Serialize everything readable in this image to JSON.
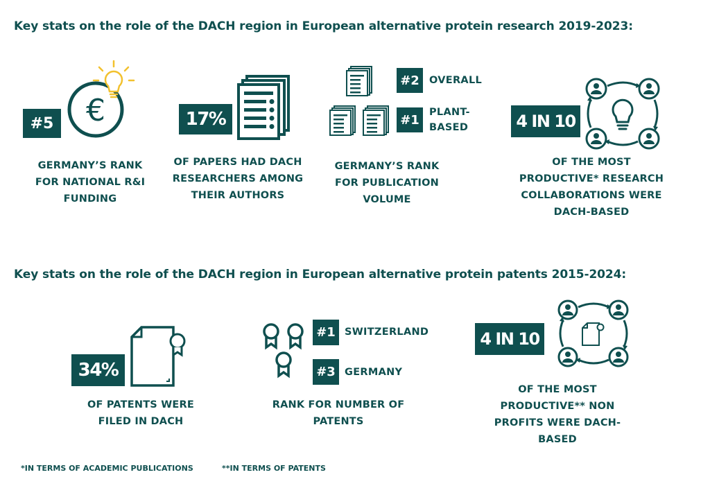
{
  "research": {
    "heading": "Key stats on the role of the DACH region in European alternative protein research 2019-2023:",
    "funding": {
      "badge": "#5",
      "caption": [
        "GERMANY’S RANK",
        "FOR NATIONAL R&I",
        "FUNDING"
      ]
    },
    "papers": {
      "badge": "17%",
      "caption": [
        "OF PAPERS HAD DACH",
        "RESEARCHERS AMONG",
        "THEIR AUTHORS"
      ]
    },
    "publication": {
      "overall_badge": "#2",
      "overall_label": "OVERALL",
      "plant_badge": "#1",
      "plant_label": [
        "PLANT-",
        "BASED"
      ],
      "caption": [
        "GERMANY’S RANK",
        "FOR PUBLICATION",
        "VOLUME"
      ]
    },
    "collaborations": {
      "badge": "4 IN 10",
      "caption": [
        "OF THE MOST",
        "PRODUCTIVE* RESEARCH",
        "COLLABORATIONS  WERE",
        "DACH-BASED"
      ]
    }
  },
  "patents": {
    "heading": "Key stats on the role of the DACH region in European alternative protein patents 2015-2024:",
    "filed": {
      "badge": "34%",
      "caption": [
        "OF PATENTS WERE",
        "FILED IN DACH"
      ]
    },
    "rank": {
      "switzerland_badge": "#1",
      "switzerland_label": "SWITZERLAND",
      "germany_badge": "#3",
      "germany_label": "GERMANY",
      "caption": [
        "RANK FOR NUMBER OF",
        "PATENTS"
      ]
    },
    "nonprofits": {
      "badge": "4 IN 10",
      "caption": [
        "OF THE MOST",
        "PRODUCTIVE** NON",
        "PROFITS WERE DACH-",
        "BASED"
      ]
    }
  },
  "footnotes": [
    "*IN TERMS OF ACADEMIC PUBLICATIONS",
    "**IN TERMS OF PATENTS"
  ],
  "colors": {
    "primary": "#0f4f4f",
    "accent": "#f2c12e",
    "background": "#ffffff"
  }
}
